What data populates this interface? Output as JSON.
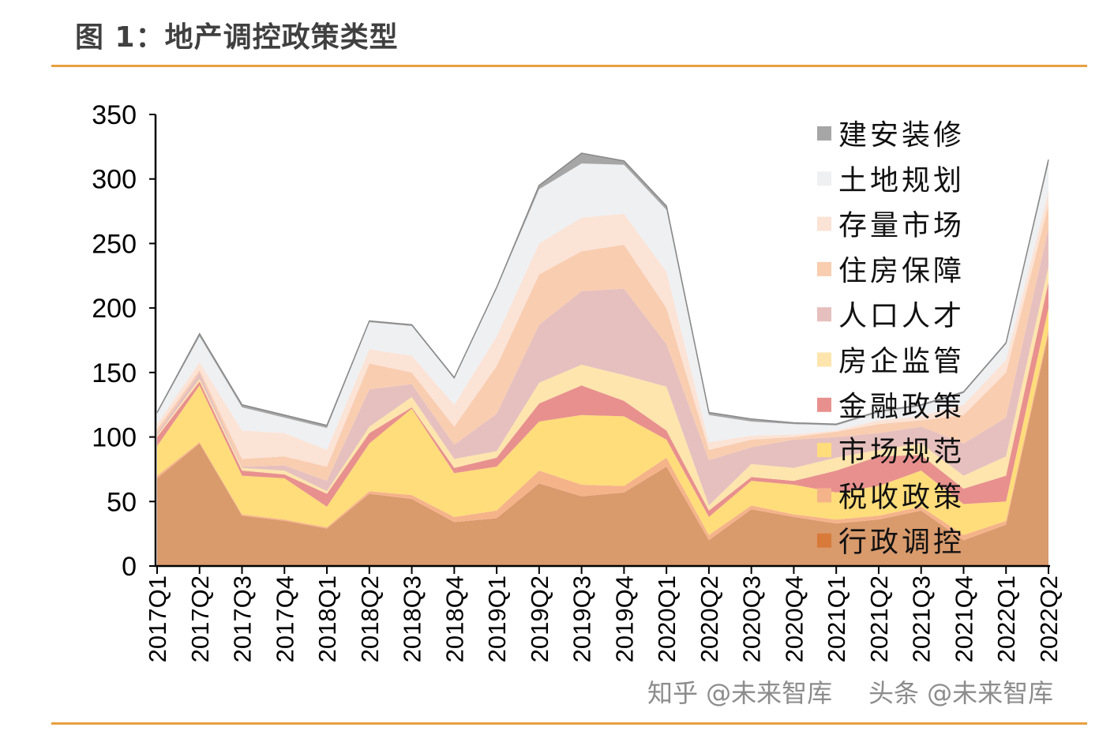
{
  "title": "图 1：地产调控政策类型",
  "watermarks": [
    "知乎 @未来智库",
    "头条 @未来智库"
  ],
  "chart_data": {
    "type": "area",
    "stacked": true,
    "title": "",
    "xlabel": "",
    "ylabel": "",
    "ylim": [
      0,
      350
    ],
    "yticks": [
      0,
      50,
      100,
      150,
      200,
      250,
      300,
      350
    ],
    "grid": false,
    "legend_position": "top-right",
    "categories": [
      "2017Q1",
      "2017Q2",
      "2017Q3",
      "2017Q4",
      "2018Q1",
      "2018Q2",
      "2018Q3",
      "2018Q4",
      "2019Q1",
      "2019Q2",
      "2019Q3",
      "2019Q4",
      "2020Q1",
      "2020Q2",
      "2020Q3",
      "2020Q4",
      "2021Q1",
      "2021Q2",
      "2021Q3",
      "2021Q4",
      "2022Q1",
      "2022Q2"
    ],
    "series": [
      {
        "name": "行政调控",
        "color": "#d99a6c",
        "legend_color": "#d87a3a",
        "values": [
          68,
          95,
          39,
          35,
          29,
          56,
          52,
          34,
          37,
          64,
          54,
          57,
          77,
          20,
          44,
          38,
          33,
          36,
          43,
          20,
          32,
          180
        ]
      },
      {
        "name": "税收政策",
        "color": "#f5b38a",
        "values": [
          2,
          1,
          1,
          1,
          1,
          2,
          3,
          4,
          6,
          10,
          9,
          5,
          7,
          4,
          3,
          2,
          3,
          3,
          3,
          4,
          3,
          3
        ]
      },
      {
        "name": "市场规范",
        "color": "#ffdd7a",
        "values": [
          23,
          44,
          30,
          32,
          16,
          37,
          67,
          34,
          34,
          38,
          54,
          54,
          14,
          14,
          19,
          23,
          21,
          23,
          28,
          24,
          15,
          17
        ]
      },
      {
        "name": "金融政策",
        "color": "#e8908e",
        "values": [
          7,
          3,
          4,
          3,
          10,
          8,
          1,
          4,
          7,
          14,
          23,
          12,
          7,
          5,
          3,
          3,
          17,
          23,
          12,
          12,
          20,
          20
        ]
      },
      {
        "name": "房企监管",
        "color": "#fde5ad",
        "values": [
          1,
          2,
          2,
          3,
          2,
          5,
          8,
          7,
          5,
          16,
          16,
          20,
          34,
          4,
          10,
          10,
          10,
          5,
          9,
          10,
          15,
          12
        ]
      },
      {
        "name": "人口人才",
        "color": "#e6c0be",
        "values": [
          2,
          5,
          1,
          4,
          8,
          29,
          10,
          11,
          29,
          45,
          57,
          67,
          33,
          35,
          13,
          22,
          16,
          13,
          13,
          25,
          30,
          30
        ]
      },
      {
        "name": "住房保障",
        "color": "#f9cdb0",
        "values": [
          3,
          2,
          6,
          7,
          11,
          20,
          9,
          14,
          37,
          39,
          31,
          34,
          28,
          8,
          6,
          2,
          4,
          7,
          5,
          22,
          35,
          18
        ]
      },
      {
        "name": "存量市场",
        "color": "#fbe3d6",
        "values": [
          4,
          6,
          22,
          18,
          13,
          11,
          13,
          17,
          23,
          24,
          26,
          24,
          28,
          6,
          3,
          2,
          1,
          3,
          3,
          8,
          10,
          10
        ]
      },
      {
        "name": "土地规划",
        "color": "#eff0f2",
        "values": [
          8,
          20,
          18,
          12,
          17,
          21,
          23,
          20,
          37,
          42,
          42,
          38,
          48,
          21,
          11,
          8,
          4,
          6,
          8,
          9,
          12,
          22
        ]
      },
      {
        "name": "建安装修",
        "color": "#a6a6a6",
        "values": [
          1,
          2,
          2,
          2,
          2,
          1,
          1,
          1,
          1,
          3,
          8,
          3,
          3,
          2,
          2,
          1,
          1,
          1,
          1,
          1,
          1,
          3
        ]
      }
    ]
  }
}
